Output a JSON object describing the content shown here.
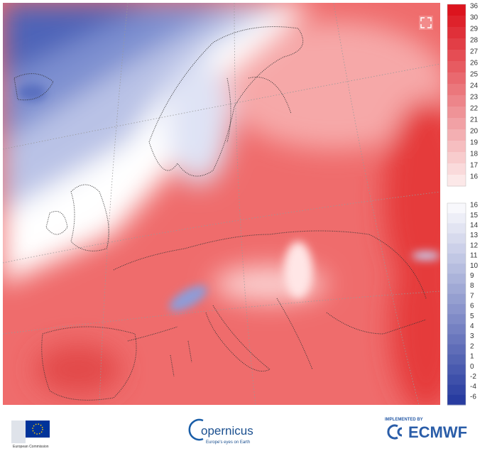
{
  "colorbar_upper": {
    "labels": [
      36,
      30,
      29,
      28,
      27,
      26,
      25,
      24,
      23,
      22,
      21,
      20,
      19,
      18,
      17,
      16
    ]
  },
  "colorbar_lower": {
    "labels": [
      16,
      15,
      14,
      13,
      12,
      11,
      10,
      9,
      8,
      7,
      6,
      5,
      4,
      3,
      2,
      1,
      0,
      -2,
      -4,
      -6
    ]
  },
  "footer": {
    "eu_name": "European Commission",
    "copernicus": "opernicus",
    "copernicus_tagline": "Europe's eyes on Earth",
    "ecmwf_caption": "IMPLEMENTED BY",
    "ecmwf": "ECMWF"
  }
}
